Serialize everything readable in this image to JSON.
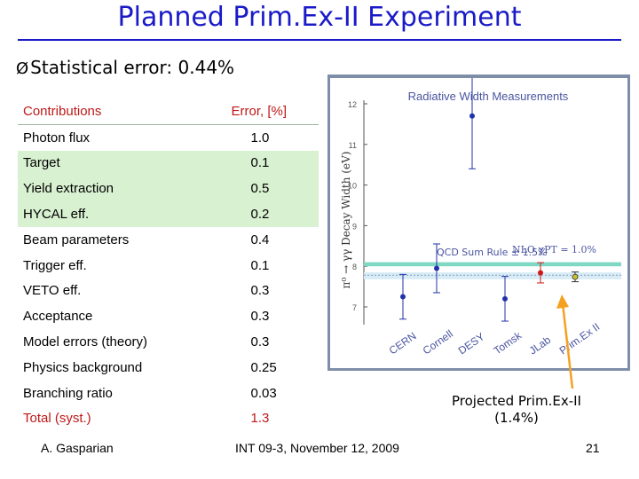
{
  "title": "Planned Prim.Ex-II Experiment",
  "bullet": {
    "arrow": "Ø",
    "text": "Statistical error: 0.44%"
  },
  "table": {
    "headers": [
      "Contributions",
      "Error, [%]"
    ],
    "rows": [
      {
        "label": "Photon flux",
        "value": "1.0"
      },
      {
        "label": "Target",
        "value": "0.1"
      },
      {
        "label": "Yield extraction",
        "value": "0.5"
      },
      {
        "label": "HYCAL eff.",
        "value": "0.2"
      },
      {
        "label": "Beam parameters",
        "value": "0.4"
      },
      {
        "label": "Trigger eff.",
        "value": "0.1"
      },
      {
        "label": "VETO eff.",
        "value": "0.3"
      },
      {
        "label": "Acceptance",
        "value": "0.3"
      },
      {
        "label": "Model errors (theory)",
        "value": "0.3"
      },
      {
        "label": "Physics background",
        "value": "0.25"
      },
      {
        "label": "Branching ratio",
        "value": "0.03"
      }
    ],
    "total": {
      "label": "Total (syst.)",
      "value": "1.3"
    }
  },
  "plot": {
    "title": "Radiative Width Measurements",
    "ylabel": "π⁰ → γγ Decay Width (eV)",
    "ticks": [
      "12",
      "11",
      "10",
      "9",
      "8",
      "7"
    ],
    "qcd_label": "QCD Sum Rule  ± 1.5%",
    "nlo_label": "NLO χPT = 1.0%",
    "experiments": [
      "CERN",
      "Cornell",
      "DESY",
      "Tomsk",
      "JLab",
      "Prim.Ex II"
    ]
  },
  "projected": {
    "line1": "Projected Prim.Ex-II",
    "line2": "(1.4%)"
  },
  "footer": {
    "author": "A. Gasparian",
    "event": "INT 09-3, November 12, 2009",
    "page": "21"
  },
  "chart_data": {
    "type": "scatter",
    "title": "Radiative Width Measurements",
    "ylabel": "π⁰ → γγ Decay Width (eV)",
    "ylim": [
      6.5,
      12.2
    ],
    "categories": [
      "CERN",
      "Cornell",
      "DESY",
      "Tomsk",
      "JLab",
      "Prim.Ex II"
    ],
    "values": [
      7.25,
      7.95,
      11.7,
      7.2,
      7.84,
      7.74
    ],
    "bands": [
      {
        "name": "QCD Sum Rule",
        "y": [
          7.68,
          7.85
        ]
      },
      {
        "name": "NLO χPT",
        "y": [
          8.0,
          8.1
        ]
      }
    ],
    "colors": {
      "points": "#2233aa",
      "jlab": "#d01818",
      "primex": "#c8c030",
      "band": "#7fd8c4"
    }
  }
}
